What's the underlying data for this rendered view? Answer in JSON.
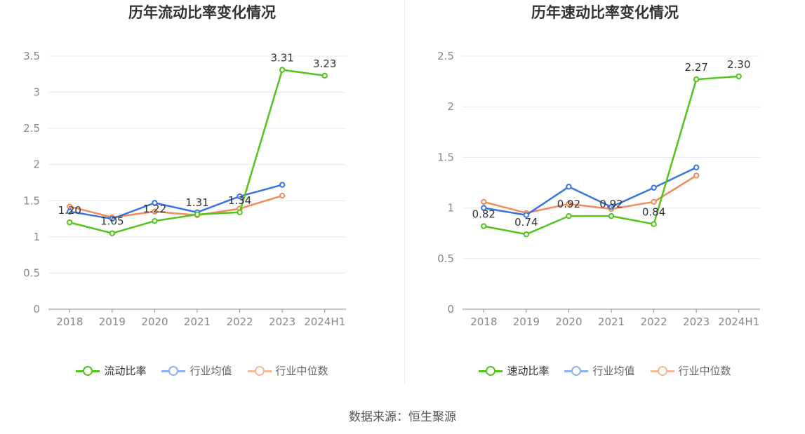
{
  "chart_data": [
    {
      "type": "line",
      "title": "历年流动比率变化情况",
      "categories": [
        "2018",
        "2019",
        "2020",
        "2021",
        "2022",
        "2023",
        "2024H1"
      ],
      "ylim": [
        0,
        3.5
      ],
      "yticks": [
        "0",
        "0.5",
        "1",
        "1.5",
        "2",
        "2.5",
        "3",
        "3.5"
      ],
      "grid": true,
      "legend_position": "bottom",
      "series": [
        {
          "name": "流动比率",
          "color": "#52c41a",
          "labeled": true,
          "values": [
            1.2,
            1.05,
            1.22,
            1.31,
            1.34,
            3.31,
            3.23
          ],
          "labels": [
            "1.20",
            "1.05",
            "1.22",
            "1.31",
            "1.34",
            "3.31",
            "3.23"
          ]
        },
        {
          "name": "行业均值",
          "color": "#3b74e0",
          "labeled": false,
          "values": [
            1.35,
            1.25,
            1.47,
            1.34,
            1.56,
            1.72,
            null
          ]
        },
        {
          "name": "行业中位数",
          "color": "#f08c5a",
          "labeled": false,
          "values": [
            1.42,
            1.27,
            1.35,
            1.3,
            1.39,
            1.57,
            null
          ]
        }
      ]
    },
    {
      "type": "line",
      "title": "历年速动比率变化情况",
      "categories": [
        "2018",
        "2019",
        "2020",
        "2021",
        "2022",
        "2023",
        "2024H1"
      ],
      "ylim": [
        0,
        2.5
      ],
      "yticks": [
        "0",
        "0.5",
        "1",
        "1.5",
        "2",
        "2.5"
      ],
      "grid": true,
      "legend_position": "bottom",
      "series": [
        {
          "name": "速动比率",
          "color": "#52c41a",
          "labeled": true,
          "values": [
            0.82,
            0.74,
            0.92,
            0.92,
            0.84,
            2.27,
            2.3
          ],
          "labels": [
            "0.82",
            "0.74",
            "0.92",
            "0.92",
            "0.84",
            "2.27",
            "2.30"
          ]
        },
        {
          "name": "行业均值",
          "color": "#3b74e0",
          "labeled": false,
          "values": [
            1.0,
            0.93,
            1.21,
            1.01,
            1.2,
            1.4,
            null
          ]
        },
        {
          "name": "行业中位数",
          "color": "#f08c5a",
          "labeled": false,
          "values": [
            1.06,
            0.95,
            1.04,
            0.99,
            1.06,
            1.32,
            null
          ]
        }
      ]
    }
  ],
  "footer": {
    "source": "数据来源：恒生聚源"
  }
}
